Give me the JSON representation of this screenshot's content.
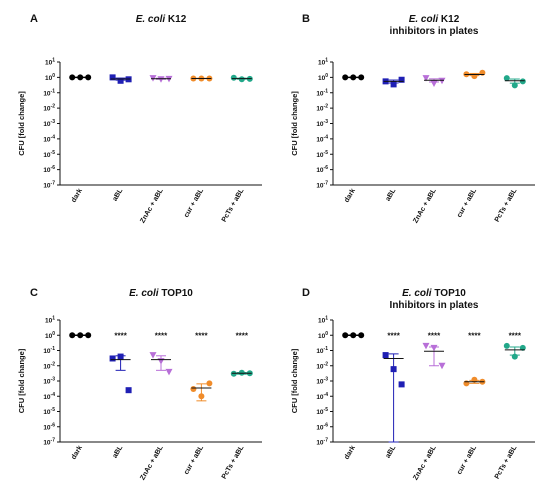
{
  "chart_data": [
    {
      "panel": "A",
      "type": "scatter",
      "title_italic": "E. coli",
      "title_rest": " K12",
      "title_line2": "",
      "ylabel": "CFU [fold change]",
      "yscale": "log",
      "ylim": [
        1e-07,
        10
      ],
      "yticks": [
        "10^1",
        "10^0",
        "10^-1",
        "10^-2",
        "10^-3",
        "10^-4",
        "10^-5",
        "10^-6",
        "10^-7"
      ],
      "categories": [
        "dark",
        "aBL",
        "ZnAc + aBL",
        "cur + aBL",
        "PcTs + aBL"
      ],
      "colors": [
        "#000000",
        "#1f1fb4",
        "#b86fd8",
        "#f08c2a",
        "#22a88a"
      ],
      "markers": [
        "circle",
        "square",
        "triangle-down",
        "circle",
        "circle"
      ],
      "points": [
        [
          1,
          1,
          1
        ],
        [
          1.0,
          0.6,
          0.75
        ],
        [
          0.9,
          0.75,
          0.8
        ],
        [
          0.85,
          0.85,
          0.85
        ],
        [
          0.95,
          0.75,
          0.8
        ]
      ],
      "means": [
        1,
        0.78,
        0.82,
        0.85,
        0.83
      ],
      "errors": [
        0,
        0.12,
        0.06,
        0.03,
        0.06
      ],
      "significance": [
        "",
        "",
        "",
        "",
        ""
      ]
    },
    {
      "panel": "B",
      "type": "scatter",
      "title_italic": "E. coli",
      "title_rest": " K12",
      "title_line2": "inhibitors in plates",
      "ylabel": "CFU [fold change]",
      "yscale": "log",
      "ylim": [
        1e-07,
        10
      ],
      "yticks": [
        "10^1",
        "10^0",
        "10^-1",
        "10^-2",
        "10^-3",
        "10^-4",
        "10^-5",
        "10^-6",
        "10^-7"
      ],
      "categories": [
        "dark",
        "aBL",
        "ZnAc + aBL",
        "cur + aBL",
        "PcTs + aBL"
      ],
      "colors": [
        "#000000",
        "#1f1fb4",
        "#b86fd8",
        "#f08c2a",
        "#22a88a"
      ],
      "markers": [
        "circle",
        "square",
        "triangle-down",
        "circle",
        "circle"
      ],
      "points": [
        [
          1,
          1,
          1
        ],
        [
          0.55,
          0.35,
          0.7
        ],
        [
          0.9,
          0.4,
          0.6
        ],
        [
          1.6,
          1.2,
          2.0
        ],
        [
          0.9,
          0.3,
          0.55
        ]
      ],
      "means": [
        1,
        0.55,
        0.65,
        1.55,
        0.6
      ],
      "errors": [
        0,
        0.12,
        0.15,
        0.25,
        0.18
      ],
      "significance": [
        "",
        "",
        "",
        "",
        ""
      ]
    },
    {
      "panel": "C",
      "type": "scatter",
      "title_italic": "E. coli",
      "title_rest": " TOP10",
      "title_line2": "",
      "ylabel": "CFU [fold change]",
      "yscale": "log",
      "ylim": [
        1e-07,
        10
      ],
      "yticks": [
        "10^1",
        "10^0",
        "10^-1",
        "10^-2",
        "10^-3",
        "10^-4",
        "10^-5",
        "10^-6",
        "10^-7"
      ],
      "categories": [
        "dark",
        "aBL",
        "ZnAc + aBL",
        "cur + aBL",
        "PcTs + aBL"
      ],
      "colors": [
        "#000000",
        "#1f1fb4",
        "#b86fd8",
        "#f08c2a",
        "#22a88a"
      ],
      "markers": [
        "circle",
        "square",
        "triangle-down",
        "circle",
        "circle"
      ],
      "points": [
        [
          1,
          1,
          1
        ],
        [
          0.03,
          0.04,
          0.00025
        ],
        [
          0.05,
          0.02,
          0.004
        ],
        [
          0.0003,
          0.0001,
          0.0007
        ],
        [
          0.003,
          0.0035,
          0.0032
        ]
      ],
      "means": [
        1,
        0.025,
        0.025,
        0.00035,
        0.0032
      ],
      "errors": [
        0,
        0.02,
        0.02,
        0.0003,
        0.0004
      ],
      "significance": [
        "",
        "****",
        "****",
        "****",
        "****"
      ]
    },
    {
      "panel": "D",
      "type": "scatter",
      "title_italic": "E. coli",
      "title_rest": " TOP10",
      "title_line2": "Inhibitors in plates",
      "ylabel": "CFU [fold change]",
      "yscale": "log",
      "ylim": [
        1e-07,
        10
      ],
      "yticks": [
        "10^1",
        "10^0",
        "10^-1",
        "10^-2",
        "10^-3",
        "10^-4",
        "10^-5",
        "10^-6",
        "10^-7"
      ],
      "categories": [
        "dark",
        "aBL",
        "ZnAc + aBL",
        "cur + aBL",
        "PcTs + aBL"
      ],
      "colors": [
        "#000000",
        "#1f1fb4",
        "#b86fd8",
        "#f08c2a",
        "#22a88a"
      ],
      "markers": [
        "circle",
        "square",
        "triangle-down",
        "circle",
        "circle"
      ],
      "points": [
        [
          1,
          1,
          1
        ],
        [
          0.05,
          0.006,
          0.0006
        ],
        [
          0.2,
          0.15,
          0.01
        ],
        [
          0.0007,
          0.0012,
          0.0009
        ],
        [
          0.2,
          0.04,
          0.15
        ]
      ],
      "means": [
        1,
        0.03,
        0.09,
        0.0009,
        0.11
      ],
      "errors": [
        0,
        0.03,
        0.08,
        0.0002,
        0.06
      ],
      "significance": [
        "",
        "****",
        "****",
        "****",
        "****"
      ]
    }
  ]
}
